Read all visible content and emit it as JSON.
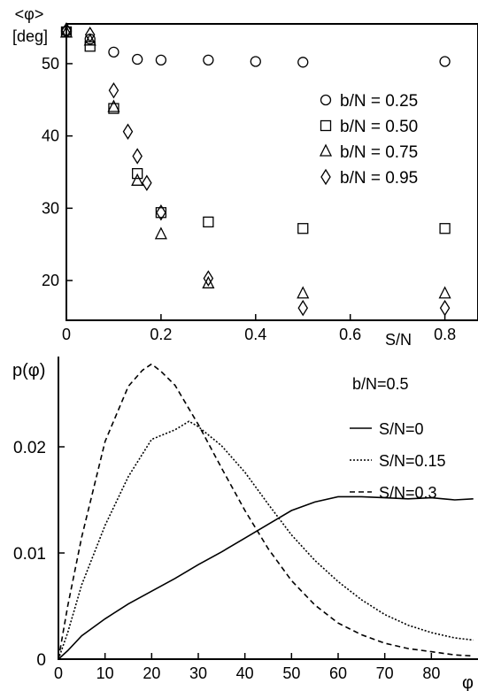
{
  "chart_data": [
    {
      "type": "scatter",
      "ylabel_line1": "<φ>",
      "ylabel_line2": "[deg]",
      "xlabel": "S/N",
      "xlim": [
        0,
        0.87
      ],
      "ylim": [
        14.5,
        55.5
      ],
      "xticks": [
        0,
        0.2,
        0.4,
        0.6,
        0.8
      ],
      "xtick_labels": [
        "0",
        "0.2",
        "0.4",
        "0.6",
        "0.8"
      ],
      "yticks": [
        20,
        30,
        40,
        50
      ],
      "ytick_labels": [
        "20",
        "30",
        "40",
        "50"
      ],
      "grid": false,
      "legend_position": "right",
      "series": [
        {
          "name": "b/N = 0.25",
          "marker": "circle",
          "x": [
            0,
            0.05,
            0.1,
            0.15,
            0.2,
            0.3,
            0.4,
            0.5,
            0.8
          ],
          "y": [
            54.5,
            53.4,
            51.6,
            50.6,
            50.5,
            50.5,
            50.3,
            50.2,
            50.3
          ]
        },
        {
          "name": "b/N = 0.50",
          "marker": "square",
          "x": [
            0,
            0.05,
            0.1,
            0.15,
            0.2,
            0.3,
            0.5,
            0.8
          ],
          "y": [
            54.4,
            52.4,
            43.8,
            34.8,
            29.4,
            28.1,
            27.2,
            27.2
          ]
        },
        {
          "name": "b/N = 0.75",
          "marker": "triangle",
          "x": [
            0,
            0.05,
            0.1,
            0.15,
            0.2,
            0.3,
            0.5,
            0.8
          ],
          "y": [
            54.3,
            53.2,
            44.0,
            33.8,
            26.4,
            19.6,
            18.2,
            18.2
          ]
        },
        {
          "name": "b/N = 0.95",
          "marker": "diamond",
          "x": [
            0,
            0.05,
            0.1,
            0.13,
            0.15,
            0.17,
            0.2,
            0.3,
            0.5,
            0.8
          ],
          "y": [
            54.6,
            54.0,
            46.3,
            40.6,
            37.2,
            33.5,
            29.4,
            20.3,
            16.2,
            16.2
          ]
        }
      ]
    },
    {
      "type": "line",
      "ylabel": "p(φ)",
      "xlabel": "φ",
      "xlim": [
        0,
        90
      ],
      "ylim": [
        0,
        0.0285
      ],
      "xticks": [
        0,
        10,
        20,
        30,
        40,
        50,
        60,
        70,
        80
      ],
      "xtick_labels": [
        "0",
        "10",
        "20",
        "30",
        "40",
        "50",
        "60",
        "70",
        "80"
      ],
      "yticks": [
        0,
        0.01,
        0.02
      ],
      "ytick_labels": [
        "0",
        "0.01",
        "0.02"
      ],
      "grid": false,
      "legend_title": "b/N=0.5",
      "legend_position": "top-right",
      "series": [
        {
          "name": "S/N=0",
          "dash": "solid",
          "x": [
            0,
            2,
            5,
            10,
            15,
            20,
            25,
            30,
            35,
            40,
            45,
            50,
            55,
            60,
            65,
            70,
            75,
            80,
            85,
            89
          ],
          "y": [
            0,
            0.0008,
            0.0022,
            0.0038,
            0.0052,
            0.0064,
            0.0076,
            0.0089,
            0.0101,
            0.0114,
            0.0127,
            0.014,
            0.0148,
            0.0153,
            0.0153,
            0.0152,
            0.0151,
            0.0152,
            0.015,
            0.0151
          ]
        },
        {
          "name": "S/N=0.15",
          "dash": "dotted",
          "x": [
            0,
            2,
            5,
            10,
            15,
            20,
            25,
            28,
            30,
            35,
            40,
            45,
            50,
            55,
            60,
            65,
            70,
            75,
            80,
            85,
            89
          ],
          "y": [
            0,
            0.0025,
            0.007,
            0.0126,
            0.0172,
            0.0207,
            0.0216,
            0.0224,
            0.0219,
            0.0201,
            0.0176,
            0.0146,
            0.0117,
            0.0093,
            0.0073,
            0.0056,
            0.0042,
            0.0032,
            0.0025,
            0.002,
            0.0018
          ]
        },
        {
          "name": "S/N=0.3",
          "dash": "dashed",
          "x": [
            0,
            2,
            5,
            10,
            15,
            18,
            20,
            22,
            25,
            30,
            35,
            40,
            45,
            50,
            55,
            60,
            65,
            70,
            75,
            80,
            85,
            89
          ],
          "y": [
            0,
            0.005,
            0.0115,
            0.0205,
            0.0257,
            0.0272,
            0.0278,
            0.0271,
            0.0258,
            0.0221,
            0.018,
            0.014,
            0.0104,
            0.0074,
            0.0051,
            0.0034,
            0.0023,
            0.0015,
            0.001,
            0.0007,
            0.0004,
            0.0003
          ]
        }
      ]
    }
  ]
}
